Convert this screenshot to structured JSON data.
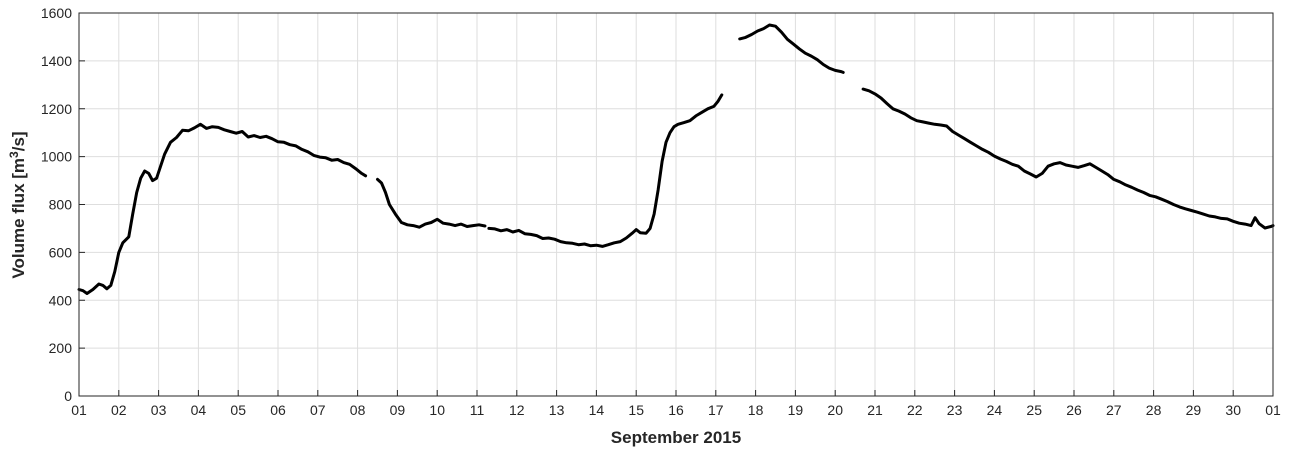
{
  "chart_data": {
    "type": "line",
    "title": "",
    "xlabel": "September 2015",
    "ylabel_main": "Volume flux [m",
    "ylabel_sup": "3",
    "ylabel_tail": "/s]",
    "ylim": [
      0,
      1600
    ],
    "yticks": [
      0,
      200,
      400,
      600,
      800,
      1000,
      1200,
      1400,
      1600
    ],
    "xlim": [
      1,
      31
    ],
    "xticks": [
      1,
      2,
      3,
      4,
      5,
      6,
      7,
      8,
      9,
      10,
      11,
      12,
      13,
      14,
      15,
      16,
      17,
      18,
      19,
      20,
      21,
      22,
      23,
      24,
      25,
      26,
      27,
      28,
      29,
      30,
      31
    ],
    "xtick_labels": [
      "01",
      "02",
      "03",
      "04",
      "05",
      "06",
      "07",
      "08",
      "09",
      "10",
      "11",
      "12",
      "13",
      "14",
      "15",
      "16",
      "17",
      "18",
      "19",
      "20",
      "21",
      "22",
      "23",
      "24",
      "25",
      "26",
      "27",
      "28",
      "29",
      "30",
      "01"
    ],
    "grid": true,
    "line_color": "#000000",
    "series": [
      {
        "segments": [
          [
            [
              1.0,
              445
            ],
            [
              1.1,
              440
            ],
            [
              1.2,
              428
            ],
            [
              1.35,
              445
            ],
            [
              1.5,
              468
            ],
            [
              1.6,
              462
            ],
            [
              1.7,
              448
            ],
            [
              1.8,
              462
            ],
            [
              1.9,
              520
            ],
            [
              2.0,
              600
            ],
            [
              2.1,
              640
            ],
            [
              2.25,
              665
            ],
            [
              2.35,
              760
            ],
            [
              2.45,
              850
            ],
            [
              2.55,
              910
            ],
            [
              2.65,
              940
            ],
            [
              2.75,
              930
            ],
            [
              2.85,
              900
            ],
            [
              2.95,
              910
            ],
            [
              3.05,
              960
            ],
            [
              3.15,
              1010
            ],
            [
              3.3,
              1060
            ],
            [
              3.45,
              1080
            ],
            [
              3.6,
              1110
            ],
            [
              3.75,
              1108
            ],
            [
              3.9,
              1120
            ],
            [
              4.05,
              1135
            ],
            [
              4.2,
              1118
            ],
            [
              4.35,
              1125
            ],
            [
              4.5,
              1122
            ],
            [
              4.65,
              1112
            ],
            [
              4.8,
              1105
            ],
            [
              4.95,
              1098
            ],
            [
              5.1,
              1105
            ],
            [
              5.25,
              1082
            ],
            [
              5.4,
              1088
            ],
            [
              5.55,
              1080
            ],
            [
              5.7,
              1085
            ],
            [
              5.85,
              1075
            ],
            [
              6.0,
              1062
            ],
            [
              6.15,
              1060
            ],
            [
              6.3,
              1050
            ],
            [
              6.45,
              1045
            ],
            [
              6.6,
              1030
            ],
            [
              6.75,
              1020
            ],
            [
              6.9,
              1005
            ],
            [
              7.05,
              998
            ],
            [
              7.2,
              995
            ],
            [
              7.35,
              985
            ],
            [
              7.5,
              988
            ],
            [
              7.65,
              975
            ],
            [
              7.8,
              968
            ],
            [
              7.95,
              950
            ],
            [
              8.1,
              930
            ],
            [
              8.2,
              920
            ]
          ],
          [
            [
              8.5,
              905
            ],
            [
              8.6,
              890
            ],
            [
              8.7,
              850
            ],
            [
              8.8,
              800
            ],
            [
              8.95,
              760
            ],
            [
              9.1,
              725
            ],
            [
              9.25,
              715
            ],
            [
              9.4,
              712
            ],
            [
              9.55,
              705
            ],
            [
              9.7,
              718
            ],
            [
              9.85,
              725
            ],
            [
              10.0,
              738
            ],
            [
              10.15,
              722
            ],
            [
              10.3,
              718
            ],
            [
              10.45,
              712
            ],
            [
              10.6,
              718
            ],
            [
              10.75,
              708
            ],
            [
              10.9,
              712
            ],
            [
              11.05,
              715
            ],
            [
              11.2,
              710
            ]
          ],
          [
            [
              11.3,
              700
            ],
            [
              11.45,
              698
            ],
            [
              11.6,
              690
            ],
            [
              11.75,
              695
            ],
            [
              11.9,
              685
            ],
            [
              12.05,
              692
            ],
            [
              12.2,
              678
            ],
            [
              12.35,
              675
            ],
            [
              12.5,
              670
            ],
            [
              12.65,
              658
            ],
            [
              12.8,
              660
            ],
            [
              12.95,
              655
            ],
            [
              13.1,
              645
            ],
            [
              13.25,
              640
            ],
            [
              13.4,
              638
            ],
            [
              13.55,
              632
            ],
            [
              13.7,
              635
            ],
            [
              13.85,
              628
            ],
            [
              14.0,
              630
            ],
            [
              14.15,
              625
            ],
            [
              14.3,
              632
            ],
            [
              14.45,
              640
            ],
            [
              14.6,
              645
            ],
            [
              14.75,
              660
            ],
            [
              14.9,
              680
            ],
            [
              15.0,
              695
            ],
            [
              15.1,
              682
            ],
            [
              15.25,
              680
            ],
            [
              15.35,
              700
            ],
            [
              15.45,
              760
            ],
            [
              15.55,
              860
            ],
            [
              15.65,
              980
            ],
            [
              15.75,
              1060
            ],
            [
              15.85,
              1100
            ],
            [
              15.95,
              1125
            ],
            [
              16.05,
              1135
            ],
            [
              16.2,
              1142
            ],
            [
              16.35,
              1150
            ],
            [
              16.5,
              1170
            ],
            [
              16.65,
              1185
            ],
            [
              16.8,
              1200
            ],
            [
              16.95,
              1210
            ],
            [
              17.05,
              1230
            ],
            [
              17.15,
              1258
            ]
          ],
          [
            [
              17.6,
              1492
            ],
            [
              17.75,
              1498
            ],
            [
              17.9,
              1510
            ],
            [
              18.05,
              1525
            ],
            [
              18.2,
              1535
            ],
            [
              18.35,
              1550
            ],
            [
              18.5,
              1545
            ],
            [
              18.65,
              1520
            ],
            [
              18.8,
              1490
            ],
            [
              18.95,
              1470
            ],
            [
              19.1,
              1450
            ],
            [
              19.25,
              1432
            ],
            [
              19.4,
              1420
            ],
            [
              19.55,
              1405
            ],
            [
              19.7,
              1385
            ],
            [
              19.85,
              1370
            ],
            [
              20.0,
              1360
            ],
            [
              20.15,
              1355
            ],
            [
              20.2,
              1352
            ]
          ],
          [
            [
              20.7,
              1282
            ],
            [
              20.85,
              1275
            ],
            [
              21.0,
              1262
            ],
            [
              21.15,
              1245
            ],
            [
              21.3,
              1222
            ],
            [
              21.45,
              1200
            ],
            [
              21.6,
              1190
            ],
            [
              21.75,
              1178
            ],
            [
              21.9,
              1162
            ],
            [
              22.05,
              1150
            ],
            [
              22.2,
              1145
            ],
            [
              22.35,
              1140
            ],
            [
              22.5,
              1135
            ],
            [
              22.65,
              1132
            ],
            [
              22.8,
              1128
            ],
            [
              22.95,
              1105
            ],
            [
              23.1,
              1090
            ],
            [
              23.25,
              1075
            ],
            [
              23.4,
              1060
            ],
            [
              23.55,
              1045
            ],
            [
              23.7,
              1030
            ],
            [
              23.85,
              1018
            ],
            [
              24.0,
              1002
            ],
            [
              24.15,
              990
            ],
            [
              24.3,
              980
            ],
            [
              24.45,
              968
            ],
            [
              24.6,
              960
            ],
            [
              24.75,
              940
            ],
            [
              24.9,
              928
            ],
            [
              25.05,
              915
            ],
            [
              25.2,
              930
            ],
            [
              25.35,
              960
            ],
            [
              25.5,
              970
            ],
            [
              25.65,
              975
            ],
            [
              25.8,
              965
            ],
            [
              25.95,
              960
            ],
            [
              26.1,
              955
            ],
            [
              26.25,
              962
            ],
            [
              26.4,
              970
            ],
            [
              26.55,
              955
            ],
            [
              26.7,
              940
            ],
            [
              26.85,
              925
            ],
            [
              27.0,
              905
            ],
            [
              27.15,
              895
            ],
            [
              27.3,
              882
            ],
            [
              27.45,
              872
            ],
            [
              27.6,
              860
            ],
            [
              27.75,
              850
            ],
            [
              27.9,
              838
            ],
            [
              28.05,
              832
            ],
            [
              28.2,
              822
            ],
            [
              28.35,
              812
            ],
            [
              28.5,
              800
            ],
            [
              28.65,
              790
            ],
            [
              28.8,
              782
            ],
            [
              28.95,
              775
            ],
            [
              29.1,
              768
            ],
            [
              29.25,
              760
            ],
            [
              29.4,
              752
            ],
            [
              29.55,
              748
            ],
            [
              29.7,
              742
            ],
            [
              29.85,
              740
            ],
            [
              30.0,
              730
            ],
            [
              30.15,
              722
            ],
            [
              30.3,
              718
            ],
            [
              30.45,
              712
            ],
            [
              30.55,
              745
            ],
            [
              30.65,
              720
            ],
            [
              30.8,
              702
            ],
            [
              30.95,
              708
            ],
            [
              31.0,
              712
            ]
          ]
        ]
      }
    ]
  }
}
